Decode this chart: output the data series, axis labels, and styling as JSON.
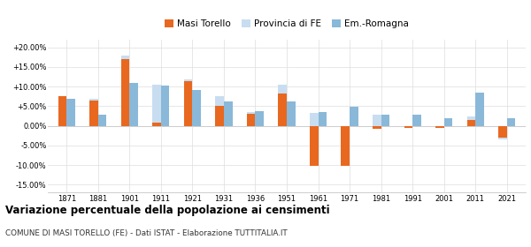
{
  "years": [
    1871,
    1881,
    1901,
    1911,
    1921,
    1931,
    1936,
    1951,
    1961,
    1971,
    1981,
    1991,
    2001,
    2011,
    2021
  ],
  "masi_torello": [
    7.5,
    6.5,
    17.0,
    0.8,
    11.5,
    5.2,
    3.0,
    8.2,
    -10.2,
    -10.2,
    -0.8,
    -0.5,
    -0.5,
    1.5,
    -3.0
  ],
  "provincia_fe": [
    7.2,
    6.8,
    18.0,
    10.5,
    11.8,
    7.5,
    3.5,
    10.5,
    3.3,
    -0.8,
    2.8,
    -0.5,
    -0.5,
    2.5,
    -3.5
  ],
  "emilia_romagna": [
    7.0,
    2.8,
    11.0,
    10.2,
    9.2,
    6.2,
    3.8,
    6.2,
    3.5,
    4.8,
    2.8,
    2.8,
    2.0,
    8.5,
    2.0
  ],
  "color_masi": "#e86820",
  "color_provincia": "#c8ddf0",
  "color_emilia": "#8ab8d8",
  "title": "Variazione percentuale della popolazione ai censimenti",
  "subtitle": "COMUNE DI MASI TORELLO (FE) - Dati ISTAT - Elaborazione TUTTITALIA.IT",
  "legend_labels": [
    "Masi Torello",
    "Provincia di FE",
    "Em.-Romagna"
  ],
  "ylim": [
    -17,
    22
  ],
  "yticks": [
    -15,
    -10,
    -5,
    0,
    5,
    10,
    15,
    20
  ],
  "ytick_labels": [
    "-15.00%",
    "-10.00%",
    "-5.00%",
    "0.00%",
    "+5.00%",
    "+10.00%",
    "+15.00%",
    "+20.00%"
  ],
  "bg_color": "#ffffff",
  "grid_color": "#dddddd"
}
